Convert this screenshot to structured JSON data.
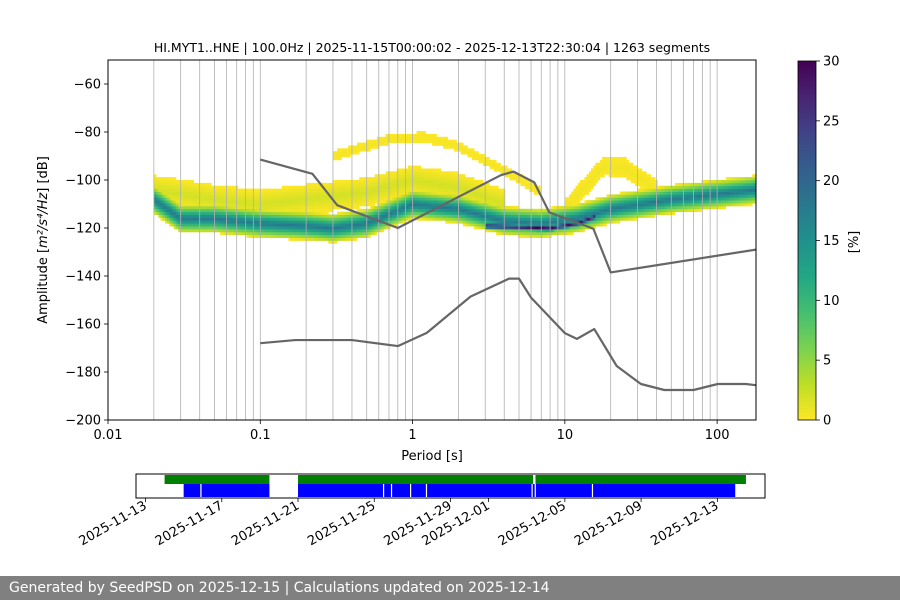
{
  "chart_data": {
    "type": "heatmap",
    "title": "HI.MYT1..HNE | 100.0Hz | 2025-11-15T00:00:02 - 2025-12-13T22:30:04 | 1263 segments",
    "xlabel": "Period [s]",
    "ylabel_main": "Amplitude [",
    "ylabel_unit": "m²/s⁴/Hz",
    "ylabel_suffix": "] [dB]",
    "x_scale": "log",
    "xlim": [
      0.01,
      180
    ],
    "ylim": [
      -200,
      -50
    ],
    "x_ticks": [
      {
        "value": 0.01,
        "label": "0.01"
      },
      {
        "value": 0.1,
        "label": "0.1"
      },
      {
        "value": 1,
        "label": "1"
      },
      {
        "value": 10,
        "label": "10"
      },
      {
        "value": 100,
        "label": "100"
      }
    ],
    "y_ticks": [
      {
        "value": -60,
        "label": "−60"
      },
      {
        "value": -80,
        "label": "−80"
      },
      {
        "value": -100,
        "label": "−100"
      },
      {
        "value": -120,
        "label": "−120"
      },
      {
        "value": -140,
        "label": "−140"
      },
      {
        "value": -160,
        "label": "−160"
      },
      {
        "value": -180,
        "label": "−180"
      },
      {
        "value": -200,
        "label": "−200"
      }
    ],
    "grid_periods": [
      0.02,
      0.03,
      0.04,
      0.05,
      0.06,
      0.07,
      0.08,
      0.09,
      0.1,
      0.2,
      0.3,
      0.4,
      0.5,
      0.6,
      0.7,
      0.8,
      0.9,
      1,
      2,
      3,
      4,
      5,
      6,
      7,
      8,
      9,
      10,
      20,
      30,
      40,
      50,
      60,
      70,
      80,
      90,
      100
    ],
    "colorbar": {
      "label": "[%]",
      "range": [
        0,
        30
      ],
      "ticks": [
        {
          "value": 0,
          "label": "0"
        },
        {
          "value": 5,
          "label": "5"
        },
        {
          "value": 10,
          "label": "10"
        },
        {
          "value": 15,
          "label": "15"
        },
        {
          "value": 20,
          "label": "20"
        },
        {
          "value": 25,
          "label": "25"
        },
        {
          "value": 30,
          "label": "30"
        }
      ],
      "colormap": "viridis_r"
    },
    "density_ridges": [
      {
        "center": [
          [
            0.02,
            -108
          ],
          [
            0.03,
            -116
          ],
          [
            0.05,
            -116
          ],
          [
            0.1,
            -118
          ],
          [
            0.2,
            -119
          ],
          [
            0.3,
            -120
          ],
          [
            0.5,
            -118
          ],
          [
            1,
            -110
          ],
          [
            2,
            -112
          ],
          [
            4,
            -117
          ],
          [
            7,
            -118
          ],
          [
            12,
            -116
          ],
          [
            20,
            -112
          ],
          [
            50,
            -108
          ],
          [
            180,
            -104
          ]
        ],
        "width": 6,
        "peak": 18
      },
      {
        "center": [
          [
            0.02,
            -104
          ],
          [
            0.05,
            -108
          ],
          [
            0.1,
            -110
          ],
          [
            0.5,
            -105
          ],
          [
            1,
            -100
          ],
          [
            2,
            -103
          ],
          [
            4,
            -110
          ]
        ],
        "width": 6,
        "peak": 2
      },
      {
        "center": [
          [
            0.3,
            -90
          ],
          [
            0.7,
            -83
          ],
          [
            1.2,
            -82
          ],
          [
            2,
            -86
          ],
          [
            4,
            -96
          ],
          [
            7,
            -105
          ]
        ],
        "width": 2,
        "peak": 0.4
      },
      {
        "center": [
          [
            10,
            -112
          ],
          [
            18,
            -94
          ],
          [
            25,
            -95
          ],
          [
            40,
            -104
          ]
        ],
        "width": 4,
        "peak": 0.6
      },
      {
        "center": [
          [
            3,
            -119
          ],
          [
            8,
            -120
          ],
          [
            12,
            -118
          ],
          [
            16,
            -115
          ]
        ],
        "width": 1.8,
        "peak": 30
      }
    ],
    "noise_models": [
      {
        "points": [
          [
            0.1,
            -91.5
          ],
          [
            0.22,
            -97.4
          ],
          [
            0.32,
            -110.5
          ],
          [
            0.8,
            -120
          ],
          [
            3.8,
            -98
          ],
          [
            4.6,
            -96.5
          ],
          [
            6.3,
            -101
          ],
          [
            7.9,
            -113.5
          ],
          [
            15.4,
            -120.3
          ],
          [
            20,
            -138.5
          ],
          [
            180,
            -129
          ]
        ]
      },
      {
        "points": [
          [
            0.1,
            -168
          ],
          [
            0.17,
            -166.7
          ],
          [
            0.4,
            -166.7
          ],
          [
            0.8,
            -169.2
          ],
          [
            1.24,
            -163.7
          ],
          [
            2.4,
            -148.6
          ],
          [
            4.3,
            -141.1
          ],
          [
            5,
            -141.1
          ],
          [
            6,
            -149
          ],
          [
            10,
            -163.8
          ],
          [
            12,
            -166.2
          ],
          [
            15.6,
            -162.1
          ],
          [
            21.9,
            -177.5
          ],
          [
            31.6,
            -185
          ],
          [
            45,
            -187.5
          ],
          [
            70,
            -187.5
          ],
          [
            101,
            -185
          ],
          [
            154,
            -185
          ],
          [
            180,
            -185.5
          ]
        ]
      }
    ],
    "timeline": {
      "tick_labels": [
        "2025-11-13",
        "2025-11-17",
        "2025-11-21",
        "2025-11-25",
        "2025-11-29",
        "2025-12-01",
        "2025-12-05",
        "2025-12-09",
        "2025-12-13"
      ],
      "date_min": "2025-11-12T12:00:00",
      "date_max": "2025-12-15T12:00:00",
      "available": [
        [
          "2025-11-14T00:00:00",
          "2025-11-19T12:00:00"
        ],
        [
          "2025-11-21T00:00:00",
          "2025-12-03T08:00:00"
        ],
        [
          "2025-12-03T11:00:00",
          "2025-12-14T12:00:00"
        ]
      ],
      "processed": [
        [
          "2025-11-15T00:00:02",
          "2025-11-19T12:00:00"
        ],
        [
          "2025-11-21T00:00:00",
          "2025-12-13T22:30:04"
        ]
      ],
      "processed_gaps": [
        "2025-11-15T21:00:00",
        "2025-11-25T11:00:00",
        "2025-11-25T21:00:00",
        "2025-11-26T21:00:00",
        "2025-11-27T17:00:00",
        "2025-12-03T06:00:00",
        "2025-12-03T10:00:00",
        "2025-12-06T10:00:00"
      ],
      "available_color": "#008000",
      "processed_color": "#0000ff"
    }
  },
  "footer": {
    "text": "Generated by SeedPSD on 2025-12-15 | Calculations updated on 2025-12-14"
  }
}
